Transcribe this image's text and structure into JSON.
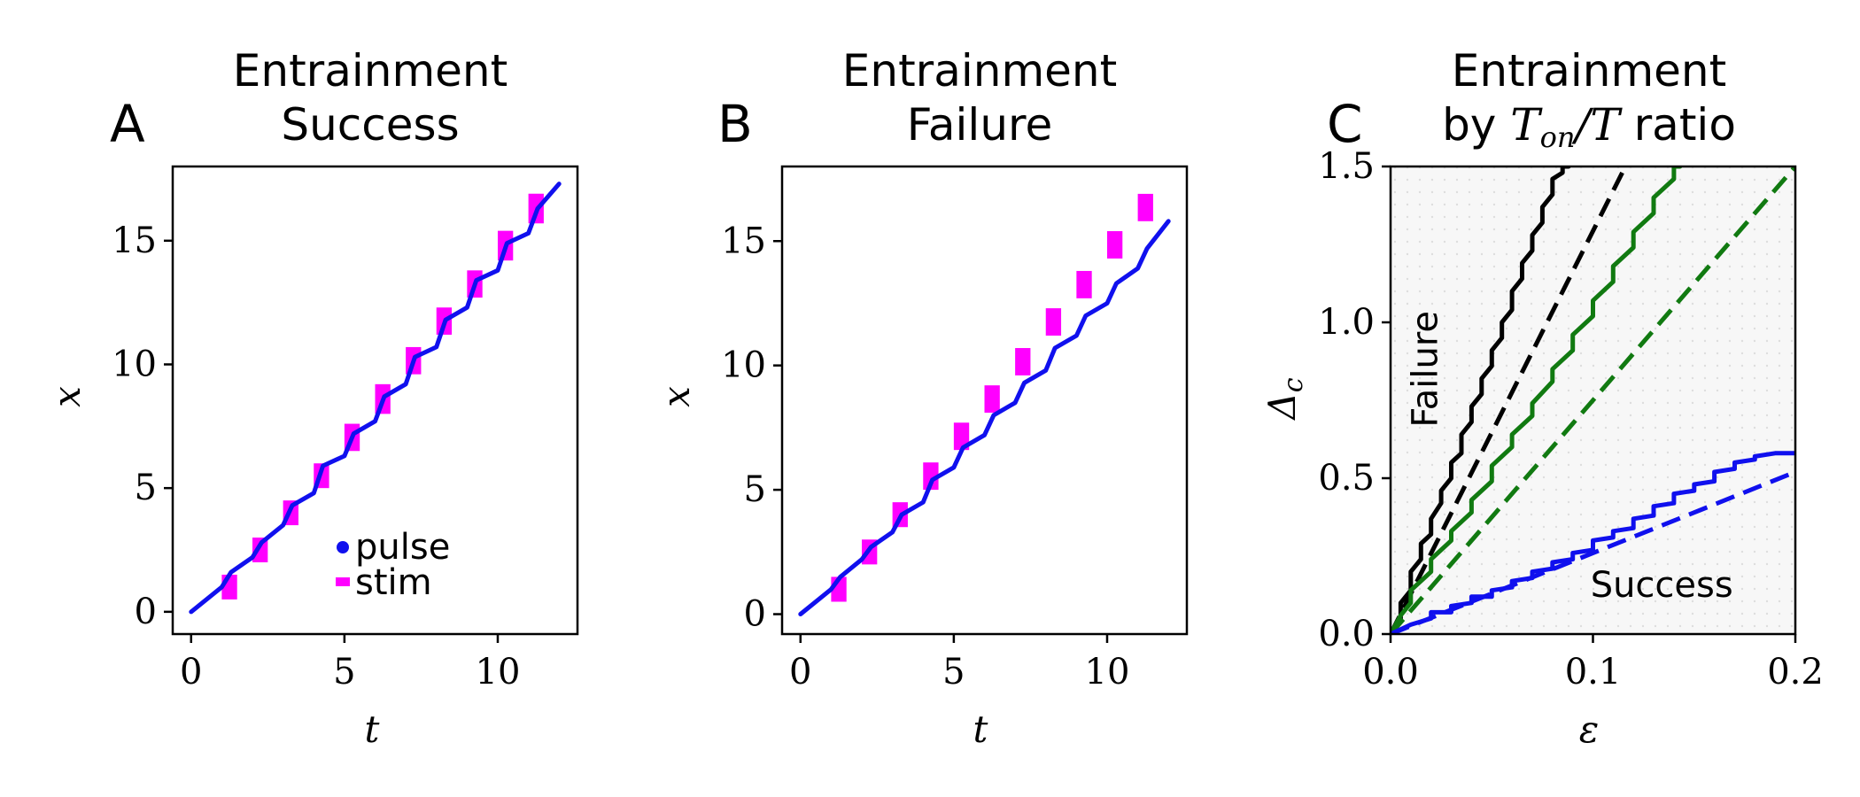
{
  "chart_data": [
    {
      "type": "line",
      "panel_letter": "A",
      "title_lines": [
        "Entrainment",
        "Success"
      ],
      "xlabel": "t",
      "ylabel": "x",
      "xlim": [
        -0.6,
        12.6
      ],
      "ylim": [
        -0.9,
        18.0
      ],
      "xticks": [
        0,
        5,
        10
      ],
      "yticks": [
        0,
        5,
        10,
        15
      ],
      "grid": false,
      "legend": {
        "position": "lower-right",
        "entries": [
          {
            "name": "pulse",
            "color": "#1010ee",
            "marker": "dot"
          },
          {
            "name": "stim",
            "color": "#ff00ff",
            "marker": "bar"
          }
        ]
      },
      "series": [
        {
          "name": "pulse",
          "kind": "line",
          "color": "#1010ee",
          "x": [
            0,
            1.0,
            1.3,
            2.0,
            2.3,
            3.0,
            3.3,
            4.0,
            4.3,
            5.0,
            5.3,
            6.0,
            6.3,
            7.0,
            7.3,
            8.0,
            8.3,
            9.0,
            9.3,
            10.0,
            10.3,
            11.0,
            11.3,
            12.0
          ],
          "y": [
            0,
            1.0,
            1.6,
            2.2,
            2.8,
            3.5,
            4.3,
            4.8,
            5.9,
            6.3,
            7.2,
            7.7,
            8.7,
            9.2,
            10.3,
            10.7,
            11.8,
            12.3,
            13.4,
            13.8,
            14.9,
            15.3,
            16.3,
            17.3
          ]
        },
        {
          "name": "stim",
          "kind": "bars",
          "color": "#ff00ff",
          "x": [
            1.25,
            2.25,
            3.25,
            4.25,
            5.25,
            6.25,
            7.25,
            8.25,
            9.25,
            10.25,
            11.25
          ],
          "y_low": [
            0.5,
            2.0,
            3.5,
            5.0,
            6.5,
            8.0,
            9.6,
            11.2,
            12.7,
            14.2,
            15.7
          ],
          "y_high": [
            1.5,
            3.0,
            4.5,
            6.0,
            7.6,
            9.2,
            10.7,
            12.3,
            13.8,
            15.4,
            16.9
          ],
          "width": 0.5
        }
      ]
    },
    {
      "type": "line",
      "panel_letter": "B",
      "title_lines": [
        "Entrainment",
        "Failure"
      ],
      "xlabel": "t",
      "ylabel": "x",
      "xlim": [
        -0.6,
        12.6
      ],
      "ylim": [
        -0.8,
        18.0
      ],
      "xticks": [
        0,
        5,
        10
      ],
      "yticks": [
        0,
        5,
        10,
        15
      ],
      "grid": false,
      "series": [
        {
          "name": "pulse",
          "kind": "line",
          "color": "#1010ee",
          "x": [
            0,
            1.0,
            1.3,
            2.0,
            2.3,
            3.0,
            3.3,
            4.0,
            4.3,
            5.0,
            5.3,
            6.0,
            6.3,
            7.0,
            7.3,
            8.0,
            8.3,
            9.0,
            9.3,
            10.0,
            10.3,
            11.0,
            11.3,
            12.0
          ],
          "y": [
            0,
            1.0,
            1.5,
            2.2,
            2.7,
            3.3,
            4.0,
            4.5,
            5.4,
            5.9,
            6.7,
            7.2,
            8.0,
            8.5,
            9.3,
            9.8,
            10.7,
            11.2,
            12.0,
            12.5,
            13.3,
            13.9,
            14.7,
            15.8
          ]
        },
        {
          "name": "stim",
          "kind": "bars",
          "color": "#ff00ff",
          "x": [
            1.25,
            2.25,
            3.25,
            4.25,
            5.25,
            6.25,
            7.25,
            8.25,
            9.25,
            10.25,
            11.25
          ],
          "y_low": [
            0.5,
            2.0,
            3.5,
            5.0,
            6.6,
            8.1,
            9.6,
            11.2,
            12.7,
            14.3,
            15.8
          ],
          "y_high": [
            1.5,
            3.0,
            4.5,
            6.1,
            7.7,
            9.2,
            10.7,
            12.3,
            13.8,
            15.4,
            16.9
          ],
          "width": 0.5
        }
      ]
    },
    {
      "type": "line",
      "panel_letter": "C",
      "title_lines": [
        "Entrainment",
        "by T_on/T ratio"
      ],
      "title_prefix": "by ",
      "title_math_base": "T",
      "title_math_sub": "on",
      "title_math_rest": "/T",
      "title_suffix": " ratio",
      "xlabel": "ε",
      "ylabel_base": "Δ",
      "ylabel_sub": "c",
      "xlim": [
        0.0,
        0.2
      ],
      "ylim": [
        0.0,
        1.5
      ],
      "xticks": [
        "0.0",
        "0.1",
        "0.2"
      ],
      "yticks": [
        "0.0",
        "0.5",
        "1.0",
        "1.5"
      ],
      "grid": true,
      "annotations": [
        {
          "text": "Failure",
          "x": 0.023,
          "y": 0.85,
          "rotation": -90
        },
        {
          "text": "Success",
          "x": 0.134,
          "y": 0.12,
          "rotation": 0
        }
      ],
      "series": [
        {
          "color": "#000000",
          "style": "solid",
          "x": [
            0,
            0.005,
            0.005,
            0.01,
            0.01,
            0.015,
            0.015,
            0.02,
            0.02,
            0.025,
            0.025,
            0.03,
            0.03,
            0.035,
            0.035,
            0.04,
            0.04,
            0.045,
            0.045,
            0.05,
            0.05,
            0.055,
            0.055,
            0.06,
            0.06,
            0.065,
            0.065,
            0.07,
            0.07,
            0.075,
            0.075,
            0.08,
            0.08,
            0.085,
            0.085,
            0.088
          ],
          "y": [
            0,
            0.04,
            0.1,
            0.14,
            0.2,
            0.24,
            0.29,
            0.32,
            0.37,
            0.42,
            0.46,
            0.5,
            0.55,
            0.58,
            0.64,
            0.68,
            0.73,
            0.77,
            0.82,
            0.86,
            0.91,
            0.95,
            1.0,
            1.04,
            1.1,
            1.14,
            1.19,
            1.23,
            1.28,
            1.32,
            1.37,
            1.41,
            1.46,
            1.48,
            1.5,
            1.5
          ]
        },
        {
          "color": "#000000",
          "style": "dashed",
          "x": [
            0,
            0.116
          ],
          "y": [
            0,
            1.5
          ]
        },
        {
          "color": "#117a11",
          "style": "solid",
          "x": [
            0,
            0.005,
            0.01,
            0.01,
            0.02,
            0.02,
            0.03,
            0.03,
            0.04,
            0.04,
            0.05,
            0.05,
            0.06,
            0.06,
            0.07,
            0.07,
            0.08,
            0.08,
            0.09,
            0.09,
            0.1,
            0.1,
            0.11,
            0.11,
            0.12,
            0.12,
            0.13,
            0.13,
            0.14,
            0.14,
            0.143
          ],
          "y": [
            0,
            0.06,
            0.1,
            0.14,
            0.2,
            0.24,
            0.3,
            0.33,
            0.39,
            0.43,
            0.49,
            0.54,
            0.6,
            0.64,
            0.7,
            0.74,
            0.81,
            0.85,
            0.91,
            0.96,
            1.02,
            1.07,
            1.13,
            1.18,
            1.24,
            1.29,
            1.35,
            1.4,
            1.46,
            1.5,
            1.5
          ]
        },
        {
          "color": "#117a11",
          "style": "dashed",
          "x": [
            0,
            0.2
          ],
          "y": [
            0,
            1.5
          ]
        },
        {
          "color": "#1010ee",
          "style": "solid",
          "x": [
            0,
            0.01,
            0.015,
            0.02,
            0.02,
            0.03,
            0.03,
            0.04,
            0.04,
            0.05,
            0.05,
            0.06,
            0.06,
            0.07,
            0.07,
            0.08,
            0.08,
            0.09,
            0.09,
            0.1,
            0.1,
            0.11,
            0.11,
            0.12,
            0.12,
            0.13,
            0.13,
            0.14,
            0.14,
            0.15,
            0.15,
            0.16,
            0.16,
            0.17,
            0.17,
            0.18,
            0.18,
            0.19,
            0.19,
            0.2
          ],
          "y": [
            0,
            0.03,
            0.04,
            0.05,
            0.07,
            0.07,
            0.09,
            0.1,
            0.12,
            0.12,
            0.14,
            0.15,
            0.17,
            0.18,
            0.2,
            0.21,
            0.23,
            0.24,
            0.26,
            0.27,
            0.3,
            0.31,
            0.33,
            0.34,
            0.37,
            0.38,
            0.41,
            0.42,
            0.45,
            0.46,
            0.48,
            0.49,
            0.52,
            0.53,
            0.55,
            0.56,
            0.57,
            0.58,
            0.58,
            0.58
          ]
        },
        {
          "color": "#1010ee",
          "style": "dashed",
          "x": [
            0,
            0.2
          ],
          "y": [
            0,
            0.52
          ]
        }
      ]
    }
  ]
}
